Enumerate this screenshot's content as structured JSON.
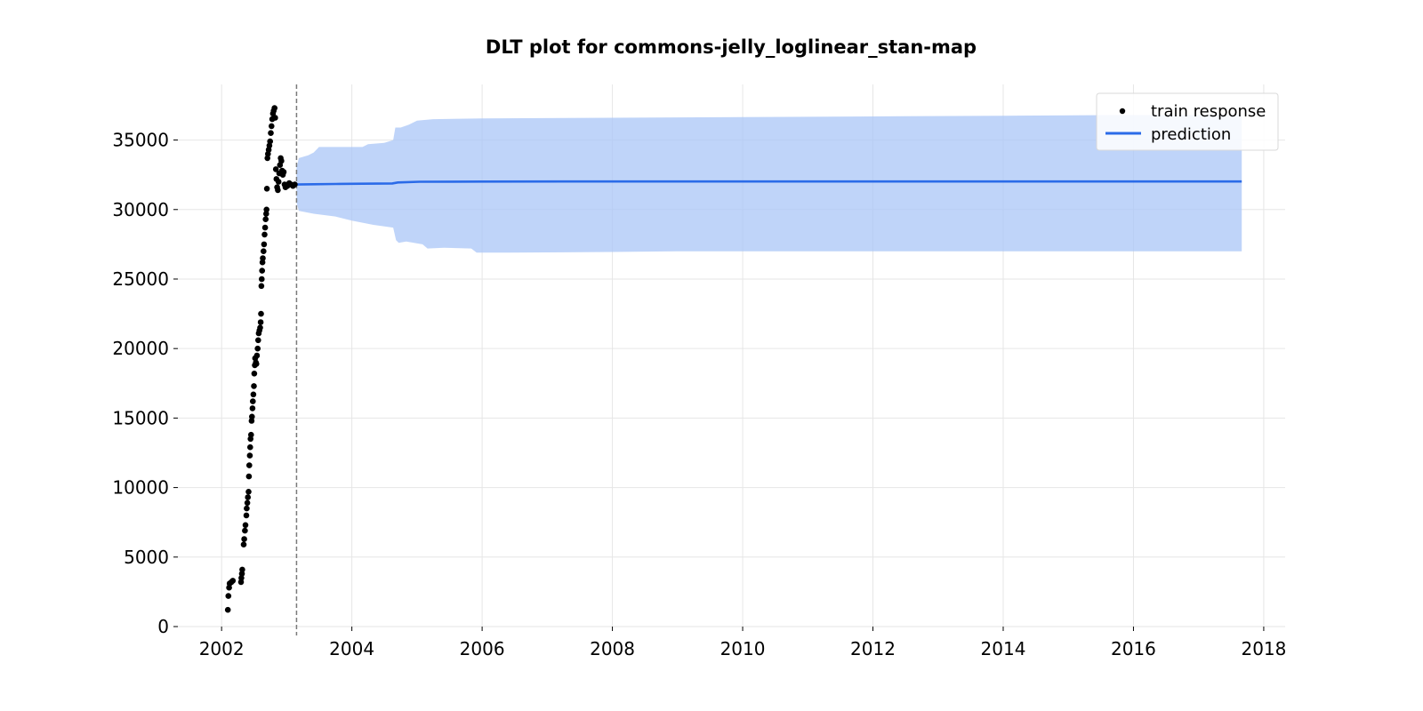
{
  "chart_data": {
    "type": "scatter",
    "title": "DLT plot for commons-jelly_loglinear_stan-map",
    "xlabel": "",
    "ylabel": "",
    "xlim": [
      "2001-05-01",
      "2018-05-01"
    ],
    "ylim": [
      0,
      39000
    ],
    "x_ticks": [
      "2002",
      "2004",
      "2006",
      "2008",
      "2010",
      "2012",
      "2014",
      "2016",
      "2018"
    ],
    "y_ticks": [
      "0",
      "5000",
      "10000",
      "15000",
      "20000",
      "25000",
      "30000",
      "35000"
    ],
    "grid": true,
    "legend_position": "top-right",
    "colors": {
      "train": "#000000",
      "prediction": "#2b6be8",
      "band": "#a9c5f7",
      "grid": "#e6e6e6",
      "vline": "#7a7a7a"
    },
    "train_cutoff": "2003-02-25",
    "series": [
      {
        "name": "train response",
        "kind": "scatter",
        "points": [
          [
            "2002-02-05",
            1200
          ],
          [
            "2002-02-08",
            2200
          ],
          [
            "2002-02-12",
            2800
          ],
          [
            "2002-02-15",
            3100
          ],
          [
            "2002-02-25",
            3200
          ],
          [
            "2002-03-05",
            3300
          ],
          [
            "2002-04-20",
            3200
          ],
          [
            "2002-04-22",
            3500
          ],
          [
            "2002-04-25",
            3800
          ],
          [
            "2002-04-27",
            4100
          ],
          [
            "2002-05-05",
            5900
          ],
          [
            "2002-05-08",
            6300
          ],
          [
            "2002-05-12",
            6900
          ],
          [
            "2002-05-15",
            7300
          ],
          [
            "2002-05-20",
            8000
          ],
          [
            "2002-05-22",
            8500
          ],
          [
            "2002-05-25",
            8900
          ],
          [
            "2002-05-28",
            9300
          ],
          [
            "2002-06-01",
            9700
          ],
          [
            "2002-06-03",
            10800
          ],
          [
            "2002-06-05",
            11600
          ],
          [
            "2002-06-08",
            12300
          ],
          [
            "2002-06-10",
            12900
          ],
          [
            "2002-06-12",
            13500
          ],
          [
            "2002-06-15",
            13800
          ],
          [
            "2002-06-18",
            14800
          ],
          [
            "2002-06-20",
            15100
          ],
          [
            "2002-06-23",
            15700
          ],
          [
            "2002-06-25",
            16200
          ],
          [
            "2002-06-28",
            16700
          ],
          [
            "2002-07-01",
            17300
          ],
          [
            "2002-07-03",
            18200
          ],
          [
            "2002-07-06",
            18800
          ],
          [
            "2002-07-08",
            19300
          ],
          [
            "2002-07-12",
            19000
          ],
          [
            "2002-07-15",
            18900
          ],
          [
            "2002-07-18",
            19500
          ],
          [
            "2002-07-22",
            20000
          ],
          [
            "2002-07-25",
            20600
          ],
          [
            "2002-07-28",
            21100
          ],
          [
            "2002-08-01",
            21300
          ],
          [
            "2002-08-05",
            21500
          ],
          [
            "2002-08-08",
            21900
          ],
          [
            "2002-08-10",
            22500
          ],
          [
            "2002-08-12",
            24500
          ],
          [
            "2002-08-14",
            25000
          ],
          [
            "2002-08-16",
            25600
          ],
          [
            "2002-08-18",
            26200
          ],
          [
            "2002-08-20",
            26500
          ],
          [
            "2002-08-24",
            27000
          ],
          [
            "2002-08-27",
            27500
          ],
          [
            "2002-08-30",
            28200
          ],
          [
            "2002-09-02",
            28700
          ],
          [
            "2002-09-05",
            29300
          ],
          [
            "2002-09-08",
            29700
          ],
          [
            "2002-09-10",
            30000
          ],
          [
            "2002-09-12",
            31500
          ],
          [
            "2002-09-15",
            33700
          ],
          [
            "2002-09-18",
            34000
          ],
          [
            "2002-09-22",
            34300
          ],
          [
            "2002-09-26",
            34600
          ],
          [
            "2002-09-30",
            34900
          ],
          [
            "2002-10-04",
            35500
          ],
          [
            "2002-10-08",
            36000
          ],
          [
            "2002-10-12",
            36500
          ],
          [
            "2002-10-16",
            36900
          ],
          [
            "2002-10-20",
            37100
          ],
          [
            "2002-10-25",
            37300
          ],
          [
            "2002-10-28",
            36600
          ],
          [
            "2002-11-01",
            32900
          ],
          [
            "2002-11-04",
            32200
          ],
          [
            "2002-11-08",
            31600
          ],
          [
            "2002-11-12",
            31400
          ],
          [
            "2002-11-16",
            32000
          ],
          [
            "2002-11-20",
            32600
          ],
          [
            "2002-11-24",
            33200
          ],
          [
            "2002-11-28",
            33700
          ],
          [
            "2002-12-02",
            33500
          ],
          [
            "2002-12-06",
            32800
          ],
          [
            "2002-12-10",
            32500
          ],
          [
            "2002-12-15",
            32700
          ],
          [
            "2002-12-20",
            31800
          ],
          [
            "2002-12-25",
            31600
          ],
          [
            "2003-01-05",
            31700
          ],
          [
            "2003-01-15",
            31900
          ],
          [
            "2003-01-25",
            31800
          ],
          [
            "2003-02-05",
            31700
          ],
          [
            "2003-02-15",
            31800
          ]
        ]
      },
      {
        "name": "prediction",
        "kind": "line",
        "points": [
          [
            "2003-02-25",
            31800
          ],
          [
            "2003-06-01",
            31820
          ],
          [
            "2003-10-01",
            31840
          ],
          [
            "2004-03-01",
            31860
          ],
          [
            "2004-08-15",
            31880
          ],
          [
            "2004-09-15",
            31950
          ],
          [
            "2005-01-15",
            32000
          ],
          [
            "2006-01-01",
            32010
          ],
          [
            "2008-01-01",
            32020
          ],
          [
            "2010-01-01",
            32020
          ],
          [
            "2012-01-01",
            32020
          ],
          [
            "2014-01-01",
            32020
          ],
          [
            "2016-01-01",
            32020
          ],
          [
            "2017-08-31",
            32020
          ]
        ]
      },
      {
        "name": "",
        "kind": "band",
        "upper": [
          [
            "2003-02-25",
            33000
          ],
          [
            "2003-03-10",
            33700
          ],
          [
            "2003-05-01",
            33900
          ],
          [
            "2003-06-01",
            34100
          ],
          [
            "2003-07-01",
            34500
          ],
          [
            "2003-09-01",
            34500
          ],
          [
            "2004-01-01",
            34500
          ],
          [
            "2004-03-01",
            34500
          ],
          [
            "2004-04-01",
            34700
          ],
          [
            "2004-07-01",
            34800
          ],
          [
            "2004-08-20",
            35000
          ],
          [
            "2004-09-01",
            35900
          ],
          [
            "2004-10-01",
            35900
          ],
          [
            "2004-11-15",
            36100
          ],
          [
            "2005-01-01",
            36400
          ],
          [
            "2005-04-01",
            36500
          ],
          [
            "2006-01-01",
            36550
          ],
          [
            "2008-01-01",
            36600
          ],
          [
            "2010-01-01",
            36650
          ],
          [
            "2012-01-01",
            36700
          ],
          [
            "2014-01-01",
            36750
          ],
          [
            "2016-01-01",
            36800
          ],
          [
            "2017-08-31",
            36800
          ]
        ],
        "lower": [
          [
            "2003-02-25",
            30500
          ],
          [
            "2003-03-10",
            29900
          ],
          [
            "2003-06-01",
            29700
          ],
          [
            "2003-10-01",
            29500
          ],
          [
            "2004-01-01",
            29200
          ],
          [
            "2004-05-01",
            28900
          ],
          [
            "2004-08-20",
            28700
          ],
          [
            "2004-09-05",
            27800
          ],
          [
            "2004-09-20",
            27600
          ],
          [
            "2004-11-01",
            27700
          ],
          [
            "2005-02-01",
            27500
          ],
          [
            "2005-03-01",
            27200
          ],
          [
            "2005-06-01",
            27250
          ],
          [
            "2005-11-01",
            27200
          ],
          [
            "2005-12-01",
            26900
          ],
          [
            "2006-06-01",
            26900
          ],
          [
            "2008-01-01",
            26950
          ],
          [
            "2009-01-01",
            27000
          ],
          [
            "2012-01-01",
            27000
          ],
          [
            "2014-01-01",
            27000
          ],
          [
            "2016-01-01",
            27000
          ],
          [
            "2017-08-31",
            27000
          ]
        ]
      }
    ]
  }
}
